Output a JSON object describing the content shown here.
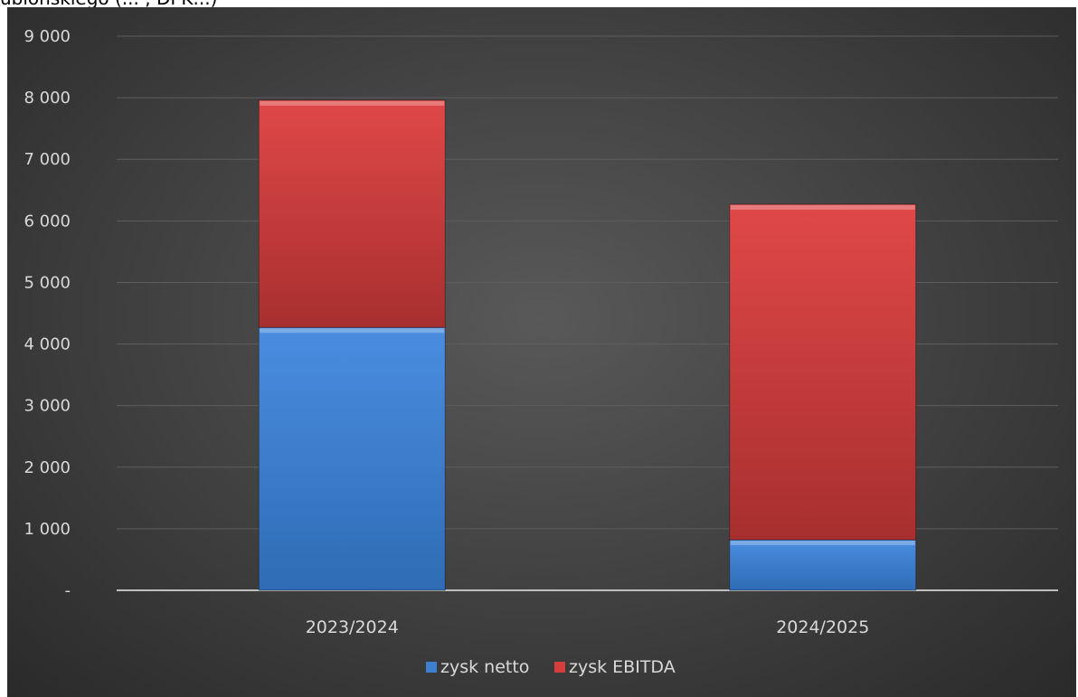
{
  "caption": "ubiońskiego (... , DPK...)",
  "colors": {
    "zysk_netto": "#3f7fd0",
    "zysk_ebitda": "#d63e3e",
    "gridline": "#5e5e5e",
    "axis_text": "#d9d9d9"
  },
  "chart_data": {
    "type": "bar",
    "stacked": true,
    "categories": [
      "2023/2024",
      "2024/2025"
    ],
    "series": [
      {
        "name": "zysk netto",
        "values": [
          4270,
          820
        ]
      },
      {
        "name": "zysk EBITDA",
        "values": [
          3690,
          5450
        ]
      }
    ],
    "ylim": [
      0,
      9000
    ],
    "yticks": [
      0,
      1000,
      2000,
      3000,
      4000,
      5000,
      6000,
      7000,
      8000,
      9000
    ],
    "ytick_labels": [
      "-",
      "1 000",
      "2 000",
      "3 000",
      "4 000",
      "5 000",
      "6 000",
      "7 000",
      "8 000",
      "9 000"
    ],
    "grid": true,
    "legend": "bottom"
  }
}
